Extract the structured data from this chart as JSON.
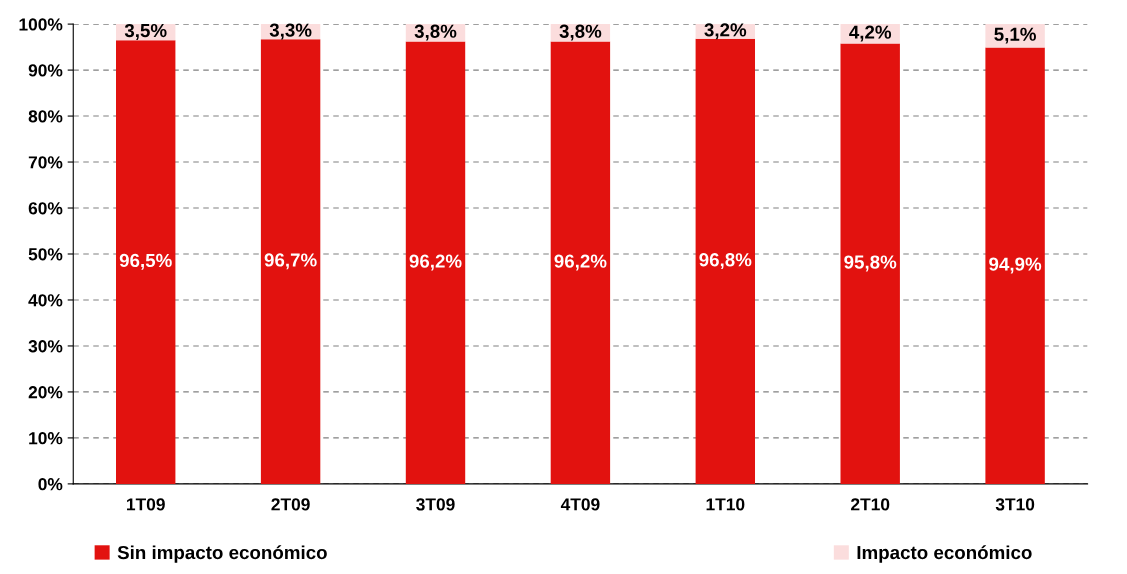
{
  "chart_data": {
    "type": "bar",
    "stacked": true,
    "categories": [
      "1T09",
      "2T09",
      "3T09",
      "4T09",
      "1T10",
      "2T10",
      "3T10"
    ],
    "series": [
      {
        "name": "Sin impacto económico",
        "color": "#e2120f",
        "values": [
          96.5,
          96.7,
          96.2,
          96.2,
          96.8,
          95.8,
          94.9
        ],
        "value_labels": [
          "96,5%",
          "96,7%",
          "96,2%",
          "96,2%",
          "96,8%",
          "95,8%",
          "94,9%"
        ]
      },
      {
        "name": "Impacto económico",
        "color": "#fbdddd",
        "values": [
          3.5,
          3.3,
          3.8,
          3.8,
          3.2,
          4.2,
          5.1
        ],
        "value_labels": [
          "3,5%",
          "3,3%",
          "3,8%",
          "3,8%",
          "3,2%",
          "4,2%",
          "5,1%"
        ]
      }
    ],
    "ylim": [
      0,
      100
    ],
    "yticks": [
      {
        "value": 0,
        "label": "0%"
      },
      {
        "value": 10,
        "label": "10%"
      },
      {
        "value": 20,
        "label": "20%"
      },
      {
        "value": 30,
        "label": "30%"
      },
      {
        "value": 40,
        "label": "40%"
      },
      {
        "value": 50,
        "label": "50%"
      },
      {
        "value": 60,
        "label": "60%"
      },
      {
        "value": 70,
        "label": "70%"
      },
      {
        "value": 80,
        "label": "80%"
      },
      {
        "value": 90,
        "label": "90%"
      },
      {
        "value": 100,
        "label": "100%"
      }
    ],
    "grid": "y",
    "legend": "bottom"
  }
}
